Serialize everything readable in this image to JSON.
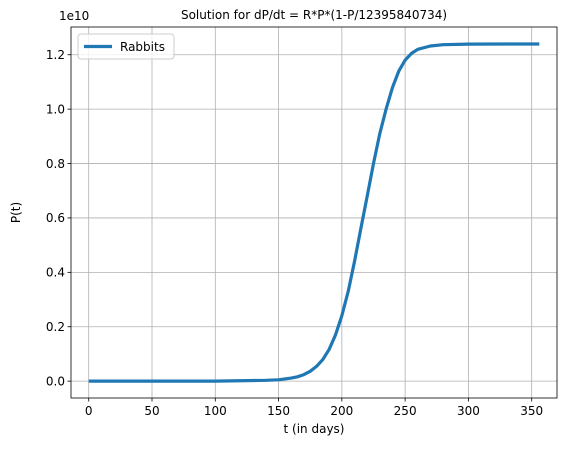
{
  "chart_data": {
    "type": "line",
    "title": "Solution for dP/dt = R*P*(1-P/12395840734)",
    "xlabel": "t (in days)",
    "ylabel": "P(t)",
    "y_offset_label": "1e10",
    "xlim": [
      -14,
      370
    ],
    "ylim": [
      -0.062,
      1.302
    ],
    "y_unit": "1e10",
    "grid": true,
    "legend_position": "upper left",
    "x_ticks": [
      0,
      50,
      100,
      150,
      200,
      250,
      300,
      350
    ],
    "x_tick_labels": [
      "0",
      "50",
      "100",
      "150",
      "200",
      "250",
      "300",
      "350"
    ],
    "y_ticks": [
      0.0,
      0.2,
      0.4,
      0.6,
      0.8,
      1.0,
      1.2
    ],
    "y_tick_labels": [
      "0.0",
      "0.2",
      "0.4",
      "0.6",
      "0.8",
      "1.0",
      "1.2"
    ],
    "series": [
      {
        "name": "Rabbits",
        "color": "#1f77b4",
        "x": [
          0,
          50,
          100,
          140,
          150,
          160,
          165,
          170,
          175,
          180,
          185,
          190,
          195,
          200,
          205,
          210,
          215,
          220,
          225,
          230,
          235,
          240,
          245,
          250,
          255,
          260,
          270,
          280,
          300,
          330,
          356
        ],
        "y": [
          0.0,
          0.0,
          0.0002,
          0.003,
          0.005,
          0.011,
          0.016,
          0.024,
          0.036,
          0.054,
          0.08,
          0.117,
          0.17,
          0.24,
          0.33,
          0.44,
          0.56,
          0.68,
          0.8,
          0.91,
          1.0,
          1.08,
          1.14,
          1.18,
          1.205,
          1.22,
          1.232,
          1.237,
          1.239,
          1.2395,
          1.2396
        ]
      }
    ]
  }
}
